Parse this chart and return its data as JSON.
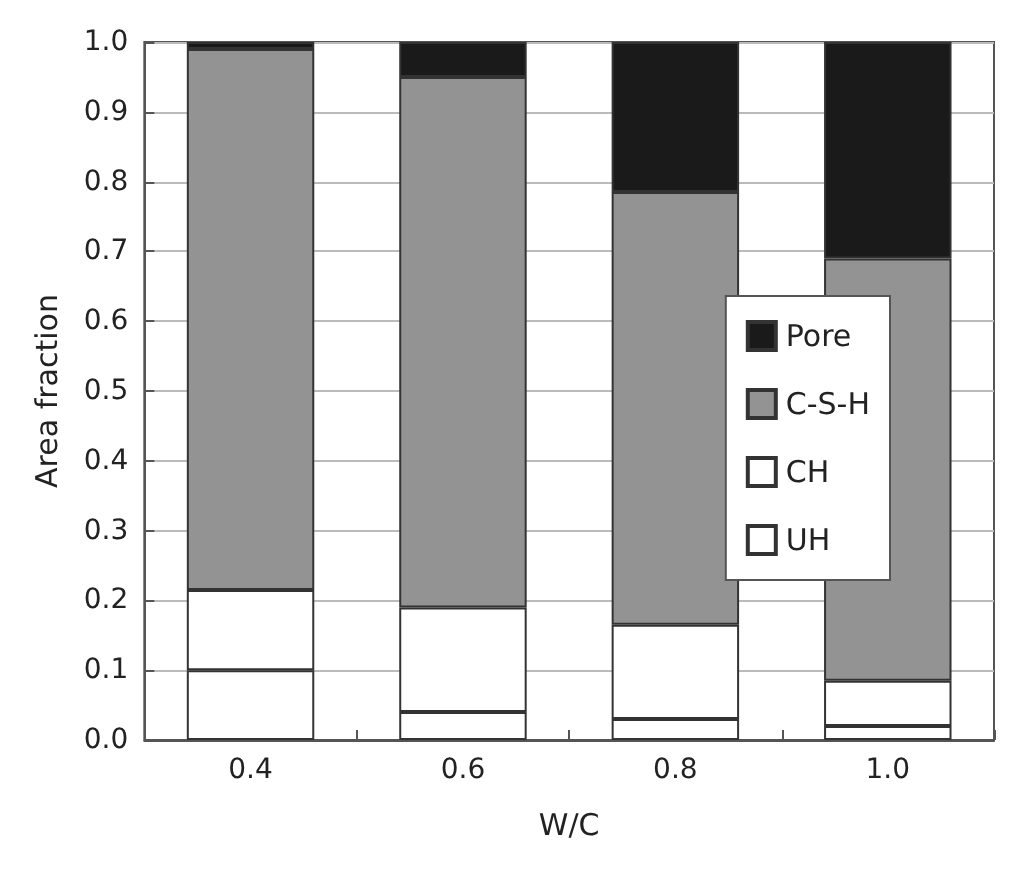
{
  "chart_data": {
    "type": "bar",
    "stacked": true,
    "xlabel": "W/C",
    "ylabel": "Area fraction",
    "categories": [
      "0.4",
      "0.6",
      "0.8",
      "1.0"
    ],
    "series": [
      {
        "name": "UH",
        "color": "#ffffff",
        "values": [
          0.1,
          0.04,
          0.03,
          0.02
        ]
      },
      {
        "name": "CH",
        "color": "#ffffff",
        "values": [
          0.115,
          0.15,
          0.135,
          0.065
        ]
      },
      {
        "name": "C-S-H",
        "color": "#939393",
        "values": [
          0.775,
          0.76,
          0.62,
          0.605
        ]
      },
      {
        "name": "Pore",
        "color": "#1a1a1a",
        "values": [
          0.01,
          0.05,
          0.215,
          0.31
        ]
      }
    ],
    "ylim": [
      0,
      1
    ],
    "yticks": [
      {
        "value": 0,
        "label": "0.0"
      },
      {
        "value": 0.1,
        "label": "0.1"
      },
      {
        "value": 0.2,
        "label": "0.2"
      },
      {
        "value": 0.3,
        "label": "0.3"
      },
      {
        "value": 0.4,
        "label": "0.4"
      },
      {
        "value": 0.5,
        "label": "0.5"
      },
      {
        "value": 0.6,
        "label": "0.6"
      },
      {
        "value": 0.7,
        "label": "0.7"
      },
      {
        "value": 0.8,
        "label": "0.8"
      },
      {
        "value": 0.9,
        "label": "0.9"
      },
      {
        "value": 1,
        "label": "1.0"
      }
    ],
    "grid": "y",
    "legend": "right"
  }
}
